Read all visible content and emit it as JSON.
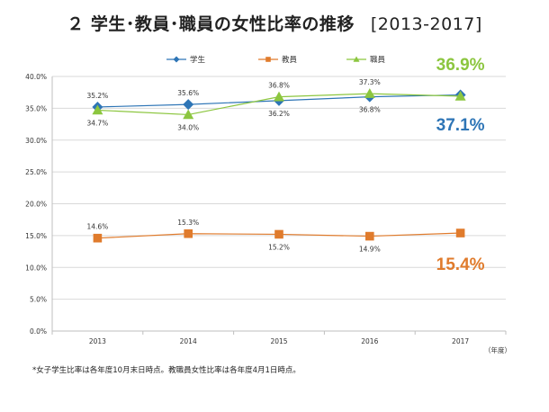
{
  "title": "２ 学生･教員･職員の女性比率の推移",
  "title_years": "[2013-2017]",
  "footnote": "*女子学生比率は各年度10月末日時点。教職員女性比率は各年度4月1日時点。",
  "chart_data": {
    "type": "line",
    "x": [
      "2013",
      "2014",
      "2015",
      "2016",
      "2017"
    ],
    "x_unit": "（年度）",
    "ylim": [
      0,
      40
    ],
    "yticks": [
      "0.0%",
      "5.0%",
      "10.0%",
      "15.0%",
      "20.0%",
      "25.0%",
      "30.0%",
      "35.0%",
      "40.0%"
    ],
    "legend_position": "top",
    "series": [
      {
        "name": "学生",
        "color": "#2e75b6",
        "marker": "diamond",
        "values": [
          35.2,
          35.6,
          36.2,
          36.8,
          37.1
        ],
        "labels": [
          "35.2%",
          "35.6%",
          "36.2%",
          "36.8%",
          ""
        ],
        "final_label": "37.1%"
      },
      {
        "name": "教員",
        "color": "#e07b2c",
        "marker": "square",
        "values": [
          14.6,
          15.3,
          15.2,
          14.9,
          15.4
        ],
        "labels": [
          "14.6%",
          "15.3%",
          "15.2%",
          "14.9%",
          ""
        ],
        "final_label": "15.4%"
      },
      {
        "name": "職員",
        "color": "#8cc63f",
        "marker": "triangle",
        "values": [
          34.7,
          34.0,
          36.8,
          37.3,
          36.9
        ],
        "labels": [
          "34.7%",
          "34.0%",
          "36.8%",
          "37.3%",
          ""
        ],
        "final_label": "36.9%"
      }
    ]
  }
}
